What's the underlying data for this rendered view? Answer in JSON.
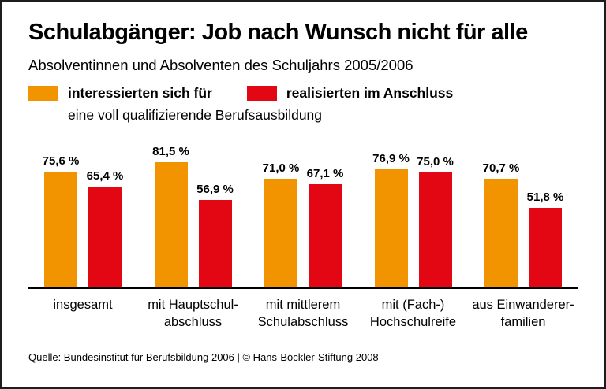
{
  "page": {
    "title": "Schulabgänger: Job nach Wunsch nicht für alle",
    "subtitle": "Absolventinnen und Absolventen des Schuljahrs 2005/2006",
    "source": "Quelle: Bundesinstitut für Berufsbildung 2006 | © Hans-Böckler-Stiftung 2008"
  },
  "colors": {
    "orange": "#F29400",
    "red": "#E30613",
    "text": "#000000",
    "background": "#FFFFFF",
    "axis": "#000000"
  },
  "legend": {
    "note": "eine voll qualifizierende Berufsausbildung"
  },
  "chart_data": {
    "type": "bar",
    "title": "Schulabgänger: Job nach Wunsch nicht für alle",
    "subtitle": "Absolventinnen und Absolventen des Schuljahrs 2005/2006",
    "categories": [
      "insgesamt",
      "mit Hauptschulabschluss",
      "mit mittlerem Schulabschluss",
      "mit (Fach-)Hochschulreife",
      "aus Einwandererfamilien"
    ],
    "category_lines": [
      [
        "insgesamt"
      ],
      [
        "mit Hauptschul-",
        "abschluss"
      ],
      [
        "mit mittlerem",
        "Schulabschluss"
      ],
      [
        "mit (Fach-)",
        "Hochschulreife"
      ],
      [
        "aus Einwanderer-",
        "familien"
      ]
    ],
    "series": [
      {
        "name": "interessierten sich für",
        "color_key": "orange",
        "values": [
          75.6,
          81.5,
          71.0,
          76.9,
          70.7
        ],
        "labels": [
          "75,6 %",
          "81,5 %",
          "71,0 %",
          "76,9 %",
          "70,7 %"
        ]
      },
      {
        "name": "realisierten im Anschluss",
        "color_key": "red",
        "values": [
          65.4,
          56.9,
          67.1,
          75.0,
          51.8
        ],
        "labels": [
          "65,4 %",
          "56,9 %",
          "67,1 %",
          "75,0 %",
          "51,8 %"
        ]
      }
    ],
    "ylabel": "",
    "xlabel": "",
    "ylim": [
      0,
      100
    ],
    "grid": false,
    "legend_position": "top-left",
    "unit": "%"
  }
}
